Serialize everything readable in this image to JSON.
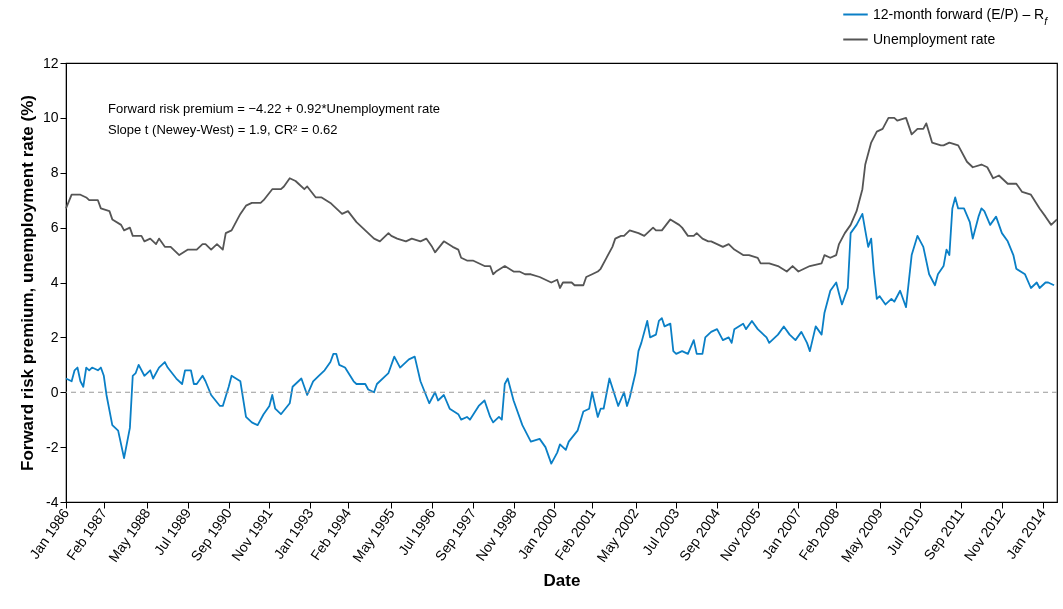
{
  "chart_data": {
    "type": "line",
    "xlabel": "Date",
    "ylabel": "Forward risk premium, unemployment rate (%)",
    "annotations": [
      "Forward risk premium = −4.22 + 0.92*Unemployment rate",
      "Slope t (Newey-West) = 1.9, CR² = 0.62"
    ],
    "xlim": [
      "1986-01",
      "2014-06"
    ],
    "xticks": [
      {
        "value": "1986-01",
        "label": "Jan 1986"
      },
      {
        "value": "1987-02",
        "label": "Feb 1987"
      },
      {
        "value": "1988-05",
        "label": "May 1988"
      },
      {
        "value": "1989-07",
        "label": "Jul 1989"
      },
      {
        "value": "1990-09",
        "label": "Sep 1990"
      },
      {
        "value": "1991-11",
        "label": "Nov 1991"
      },
      {
        "value": "1993-01",
        "label": "Jan 1993"
      },
      {
        "value": "1994-02",
        "label": "Feb 1994"
      },
      {
        "value": "1995-05",
        "label": "May 1995"
      },
      {
        "value": "1996-07",
        "label": "Jul 1996"
      },
      {
        "value": "1997-09",
        "label": "Sep 1997"
      },
      {
        "value": "1998-11",
        "label": "Nov 1998"
      },
      {
        "value": "2000-01",
        "label": "Jan 2000"
      },
      {
        "value": "2001-02",
        "label": "Feb 2001"
      },
      {
        "value": "2002-05",
        "label": "May 2002"
      },
      {
        "value": "2003-07",
        "label": "Jul 2003"
      },
      {
        "value": "2004-09",
        "label": "Sep 2004"
      },
      {
        "value": "2005-11",
        "label": "Nov 2005"
      },
      {
        "value": "2007-01",
        "label": "Jan 2007"
      },
      {
        "value": "2008-02",
        "label": "Feb 2008"
      },
      {
        "value": "2009-05",
        "label": "May 2009"
      },
      {
        "value": "2010-07",
        "label": "Jul 2010"
      },
      {
        "value": "2011-09",
        "label": "Sep 2011"
      },
      {
        "value": "2012-11",
        "label": "Nov 2012"
      },
      {
        "value": "2014-01",
        "label": "Jan 2014"
      }
    ],
    "ylim": [
      -4,
      12
    ],
    "yticks": [
      -4,
      -2,
      0,
      2,
      4,
      6,
      8,
      10,
      12
    ],
    "legend": "top right",
    "ref_lines": [
      {
        "axis": "y",
        "value": 0,
        "color": "#999999",
        "line_style": "dashed"
      }
    ],
    "series": [
      {
        "name": "12-month forward (E/P) – R$_{f}$",
        "color": "#0a7fc6",
        "x": [
          "1986-01",
          "1986-03",
          "1986-04",
          "1986-05",
          "1986-06",
          "1986-07",
          "1986-08",
          "1986-09",
          "1986-10",
          "1986-12",
          "1987-01",
          "1987-02",
          "1987-03",
          "1987-05",
          "1987-07",
          "1987-09",
          "1987-11",
          "1987-12",
          "1988-01",
          "1988-02",
          "1988-04",
          "1988-06",
          "1988-07",
          "1988-09",
          "1988-11",
          "1988-12",
          "1989-03",
          "1989-05",
          "1989-06",
          "1989-08",
          "1989-09",
          "1989-10",
          "1989-12",
          "1990-01",
          "1990-03",
          "1990-06",
          "1990-07",
          "1990-09",
          "1990-10",
          "1991-01",
          "1991-03",
          "1991-05",
          "1991-07",
          "1991-09",
          "1991-11",
          "1991-12",
          "1992-01",
          "1992-03",
          "1992-06",
          "1992-07",
          "1992-10",
          "1992-12",
          "1993-02",
          "1993-04",
          "1993-06",
          "1993-08",
          "1993-09",
          "1993-10",
          "1993-11",
          "1994-01",
          "1994-04",
          "1994-05",
          "1994-08",
          "1994-09",
          "1994-11",
          "1994-12",
          "1995-03",
          "1995-04",
          "1995-06",
          "1995-08",
          "1995-11",
          "1996-01",
          "1996-03",
          "1996-06",
          "1996-08",
          "1996-09",
          "1996-11",
          "1997-01",
          "1997-04",
          "1997-05",
          "1997-07",
          "1997-08",
          "1997-11",
          "1998-01",
          "1998-03",
          "1998-04",
          "1998-06",
          "1998-07",
          "1998-08",
          "1998-09",
          "1998-11",
          "1999-02",
          "1999-05",
          "1999-08",
          "1999-10",
          "1999-12",
          "2000-02",
          "2000-03",
          "2000-05",
          "2000-06",
          "2000-09",
          "2000-11",
          "2001-01",
          "2001-02",
          "2001-04",
          "2001-05",
          "2001-06",
          "2001-08",
          "2001-11",
          "2002-01",
          "2002-02",
          "2002-03",
          "2002-05",
          "2002-06",
          "2002-07",
          "2002-09",
          "2002-10",
          "2002-12",
          "2003-01",
          "2003-02",
          "2003-03",
          "2003-05",
          "2003-06",
          "2003-07",
          "2003-09",
          "2003-11",
          "2004-01",
          "2004-02",
          "2004-04",
          "2004-05",
          "2004-07",
          "2004-09",
          "2004-11",
          "2005-01",
          "2005-02",
          "2005-03",
          "2005-06",
          "2005-07",
          "2005-09",
          "2005-11",
          "2006-02",
          "2006-03",
          "2006-06",
          "2006-08",
          "2006-10",
          "2006-12",
          "2007-02",
          "2007-04",
          "2007-05",
          "2007-07",
          "2007-09",
          "2007-10",
          "2007-12",
          "2008-02",
          "2008-03",
          "2008-04",
          "2008-06",
          "2008-07",
          "2008-09",
          "2008-11",
          "2008-12",
          "2009-01",
          "2009-02",
          "2009-03",
          "2009-04",
          "2009-05",
          "2009-07",
          "2009-09",
          "2009-10",
          "2009-12",
          "2010-02",
          "2010-04",
          "2010-06",
          "2010-08",
          "2010-10",
          "2010-12",
          "2011-01",
          "2011-03",
          "2011-04",
          "2011-05",
          "2011-06",
          "2011-07",
          "2011-08",
          "2011-10",
          "2011-12",
          "2012-01",
          "2012-03",
          "2012-04",
          "2012-05",
          "2012-07",
          "2012-09",
          "2012-11",
          "2013-01",
          "2013-03",
          "2013-04",
          "2013-07",
          "2013-09",
          "2013-11",
          "2013-12",
          "2014-02",
          "2014-03",
          "2014-05"
        ],
        "values": [
          0.5,
          0.4,
          0.8,
          0.9,
          0.4,
          0.2,
          0.9,
          0.8,
          0.9,
          0.8,
          0.9,
          0.6,
          -0.1,
          -1.2,
          -1.4,
          -2.4,
          -1.3,
          0.6,
          0.7,
          1.0,
          0.6,
          0.8,
          0.5,
          0.9,
          1.1,
          0.9,
          0.5,
          0.3,
          0.8,
          0.8,
          0.3,
          0.3,
          0.6,
          0.4,
          -0.1,
          -0.5,
          -0.5,
          0.2,
          0.6,
          0.4,
          -0.9,
          -1.1,
          -1.2,
          -0.8,
          -0.5,
          -0.1,
          -0.6,
          -0.8,
          -0.4,
          0.2,
          0.5,
          -0.1,
          0.4,
          0.6,
          0.8,
          1.1,
          1.4,
          1.4,
          1.0,
          0.9,
          0.4,
          0.3,
          0.3,
          0.1,
          0.0,
          0.3,
          0.6,
          0.7,
          1.3,
          0.9,
          1.2,
          1.3,
          0.4,
          -0.4,
          0.0,
          -0.3,
          -0.1,
          -0.6,
          -0.8,
          -1.0,
          -0.9,
          -1.0,
          -0.5,
          -0.3,
          -0.9,
          -1.1,
          -0.9,
          -1.0,
          0.3,
          0.5,
          -0.3,
          -1.2,
          -1.8,
          -1.7,
          -2.0,
          -2.6,
          -2.2,
          -1.9,
          -2.1,
          -1.8,
          -1.4,
          -0.7,
          -0.6,
          0.0,
          -0.9,
          -0.6,
          -0.6,
          0.5,
          -0.5,
          0.0,
          -0.5,
          -0.2,
          0.7,
          1.5,
          1.8,
          2.6,
          2.0,
          2.1,
          2.6,
          2.7,
          2.4,
          2.5,
          1.5,
          1.4,
          1.5,
          1.4,
          1.9,
          1.4,
          1.4,
          2.0,
          2.2,
          2.3,
          1.9,
          2.0,
          1.8,
          2.3,
          2.5,
          2.3,
          2.6,
          2.3,
          2.0,
          1.8,
          2.1,
          2.4,
          2.1,
          1.9,
          2.2,
          1.8,
          1.5,
          2.4,
          2.1,
          2.9,
          3.7,
          4.0,
          3.6,
          3.2,
          3.8,
          5.8,
          6.1,
          6.5,
          5.9,
          5.3,
          5.6,
          4.4,
          3.4,
          3.5,
          3.2,
          3.4,
          3.3,
          3.7,
          3.1,
          5.0,
          5.7,
          5.3,
          4.3,
          3.9,
          4.3,
          4.6,
          5.2,
          5.0,
          6.7,
          7.1,
          6.7,
          6.7,
          6.2,
          5.6,
          6.4,
          6.7,
          6.6,
          6.1,
          6.4,
          5.8,
          5.5,
          5.0,
          4.5,
          4.3,
          3.8,
          4.0,
          3.8,
          4.0,
          4.0,
          3.9
        ]
      },
      {
        "name": "Unemployment rate",
        "color": "#555555",
        "x": [
          "1986-01",
          "1986-03",
          "1986-06",
          "1986-08",
          "1986-09",
          "1986-12",
          "1987-01",
          "1987-04",
          "1987-05",
          "1987-08",
          "1987-09",
          "1987-11",
          "1987-12",
          "1988-03",
          "1988-04",
          "1988-06",
          "1988-08",
          "1988-09",
          "1988-11",
          "1989-01",
          "1989-04",
          "1989-07",
          "1989-10",
          "1989-12",
          "1990-01",
          "1990-03",
          "1990-05",
          "1990-07",
          "1990-08",
          "1990-10",
          "1990-12",
          "1991-01",
          "1991-03",
          "1991-05",
          "1991-08",
          "1991-09",
          "1991-12",
          "1992-03",
          "1992-04",
          "1992-06",
          "1992-08",
          "1992-09",
          "1992-11",
          "1992-12",
          "1993-03",
          "1993-05",
          "1993-08",
          "1993-10",
          "1993-12",
          "1994-02",
          "1994-05",
          "1994-08",
          "1994-11",
          "1995-01",
          "1995-04",
          "1995-05",
          "1995-07",
          "1995-10",
          "1995-12",
          "1996-03",
          "1996-05",
          "1996-07",
          "1996-08",
          "1996-11",
          "1997-02",
          "1997-04",
          "1997-05",
          "1997-07",
          "1997-09",
          "1997-11",
          "1998-01",
          "1998-03",
          "1998-04",
          "1998-05",
          "1998-08",
          "1998-11",
          "1999-01",
          "1999-03",
          "1999-05",
          "1999-08",
          "1999-10",
          "1999-12",
          "2000-02",
          "2000-03",
          "2000-04",
          "2000-07",
          "2000-08",
          "2000-11",
          "2000-12",
          "2001-02",
          "2001-04",
          "2001-05",
          "2001-07",
          "2001-09",
          "2001-10",
          "2001-12",
          "2002-01",
          "2002-03",
          "2002-06",
          "2002-08",
          "2002-10",
          "2002-11",
          "2002-12",
          "2003-02",
          "2003-05",
          "2003-08",
          "2003-09",
          "2003-11",
          "2004-01",
          "2004-02",
          "2004-04",
          "2004-06",
          "2004-07",
          "2004-09",
          "2004-11",
          "2005-01",
          "2005-03",
          "2005-06",
          "2005-08",
          "2005-11",
          "2005-12",
          "2006-03",
          "2006-06",
          "2006-09",
          "2006-11",
          "2007-01",
          "2007-03",
          "2007-05",
          "2007-09",
          "2007-10",
          "2007-12",
          "2008-02",
          "2008-03",
          "2008-05",
          "2008-07",
          "2008-09",
          "2008-11",
          "2008-12",
          "2009-02",
          "2009-04",
          "2009-06",
          "2009-08",
          "2009-10",
          "2009-11",
          "2010-02",
          "2010-04",
          "2010-06",
          "2010-08",
          "2010-09",
          "2010-11",
          "2011-02",
          "2011-03",
          "2011-05",
          "2011-08",
          "2011-11",
          "2012-01",
          "2012-04",
          "2012-06",
          "2012-08",
          "2012-10",
          "2013-01",
          "2013-04",
          "2013-06",
          "2013-09",
          "2013-12",
          "2014-02",
          "2014-04",
          "2014-06"
        ],
        "values": [
          6.7,
          7.2,
          7.2,
          7.1,
          7.0,
          7.0,
          6.7,
          6.6,
          6.3,
          6.1,
          5.9,
          6.0,
          5.7,
          5.7,
          5.5,
          5.6,
          5.4,
          5.6,
          5.3,
          5.3,
          5.0,
          5.2,
          5.2,
          5.4,
          5.4,
          5.2,
          5.4,
          5.2,
          5.8,
          5.9,
          6.3,
          6.5,
          6.8,
          6.9,
          6.9,
          7.0,
          7.4,
          7.4,
          7.5,
          7.8,
          7.7,
          7.6,
          7.4,
          7.5,
          7.1,
          7.1,
          6.9,
          6.7,
          6.5,
          6.6,
          6.2,
          5.9,
          5.6,
          5.5,
          5.8,
          5.7,
          5.6,
          5.5,
          5.6,
          5.5,
          5.6,
          5.3,
          5.1,
          5.5,
          5.3,
          5.2,
          4.9,
          4.8,
          4.8,
          4.7,
          4.6,
          4.6,
          4.3,
          4.4,
          4.6,
          4.4,
          4.4,
          4.3,
          4.3,
          4.2,
          4.1,
          4.0,
          4.1,
          3.8,
          4.0,
          4.0,
          3.9,
          3.9,
          4.2,
          4.3,
          4.4,
          4.5,
          4.9,
          5.3,
          5.6,
          5.7,
          5.7,
          5.9,
          5.8,
          5.7,
          5.9,
          6.0,
          5.9,
          5.9,
          6.3,
          6.1,
          6.0,
          5.7,
          5.7,
          5.8,
          5.6,
          5.5,
          5.5,
          5.4,
          5.3,
          5.4,
          5.2,
          5.0,
          5.0,
          4.9,
          4.7,
          4.7,
          4.6,
          4.4,
          4.6,
          4.4,
          4.5,
          4.6,
          4.7,
          5.0,
          4.9,
          5.0,
          5.4,
          5.8,
          6.1,
          6.6,
          7.4,
          8.3,
          9.1,
          9.5,
          9.6,
          10.0,
          10.0,
          9.9,
          10.0,
          9.4,
          9.6,
          9.6,
          9.8,
          9.1,
          9.0,
          9.0,
          9.1,
          9.0,
          8.4,
          8.2,
          8.3,
          8.2,
          7.8,
          7.9,
          7.6,
          7.6,
          7.3,
          7.2,
          6.7,
          6.4,
          6.1,
          6.3
        ]
      }
    ]
  }
}
